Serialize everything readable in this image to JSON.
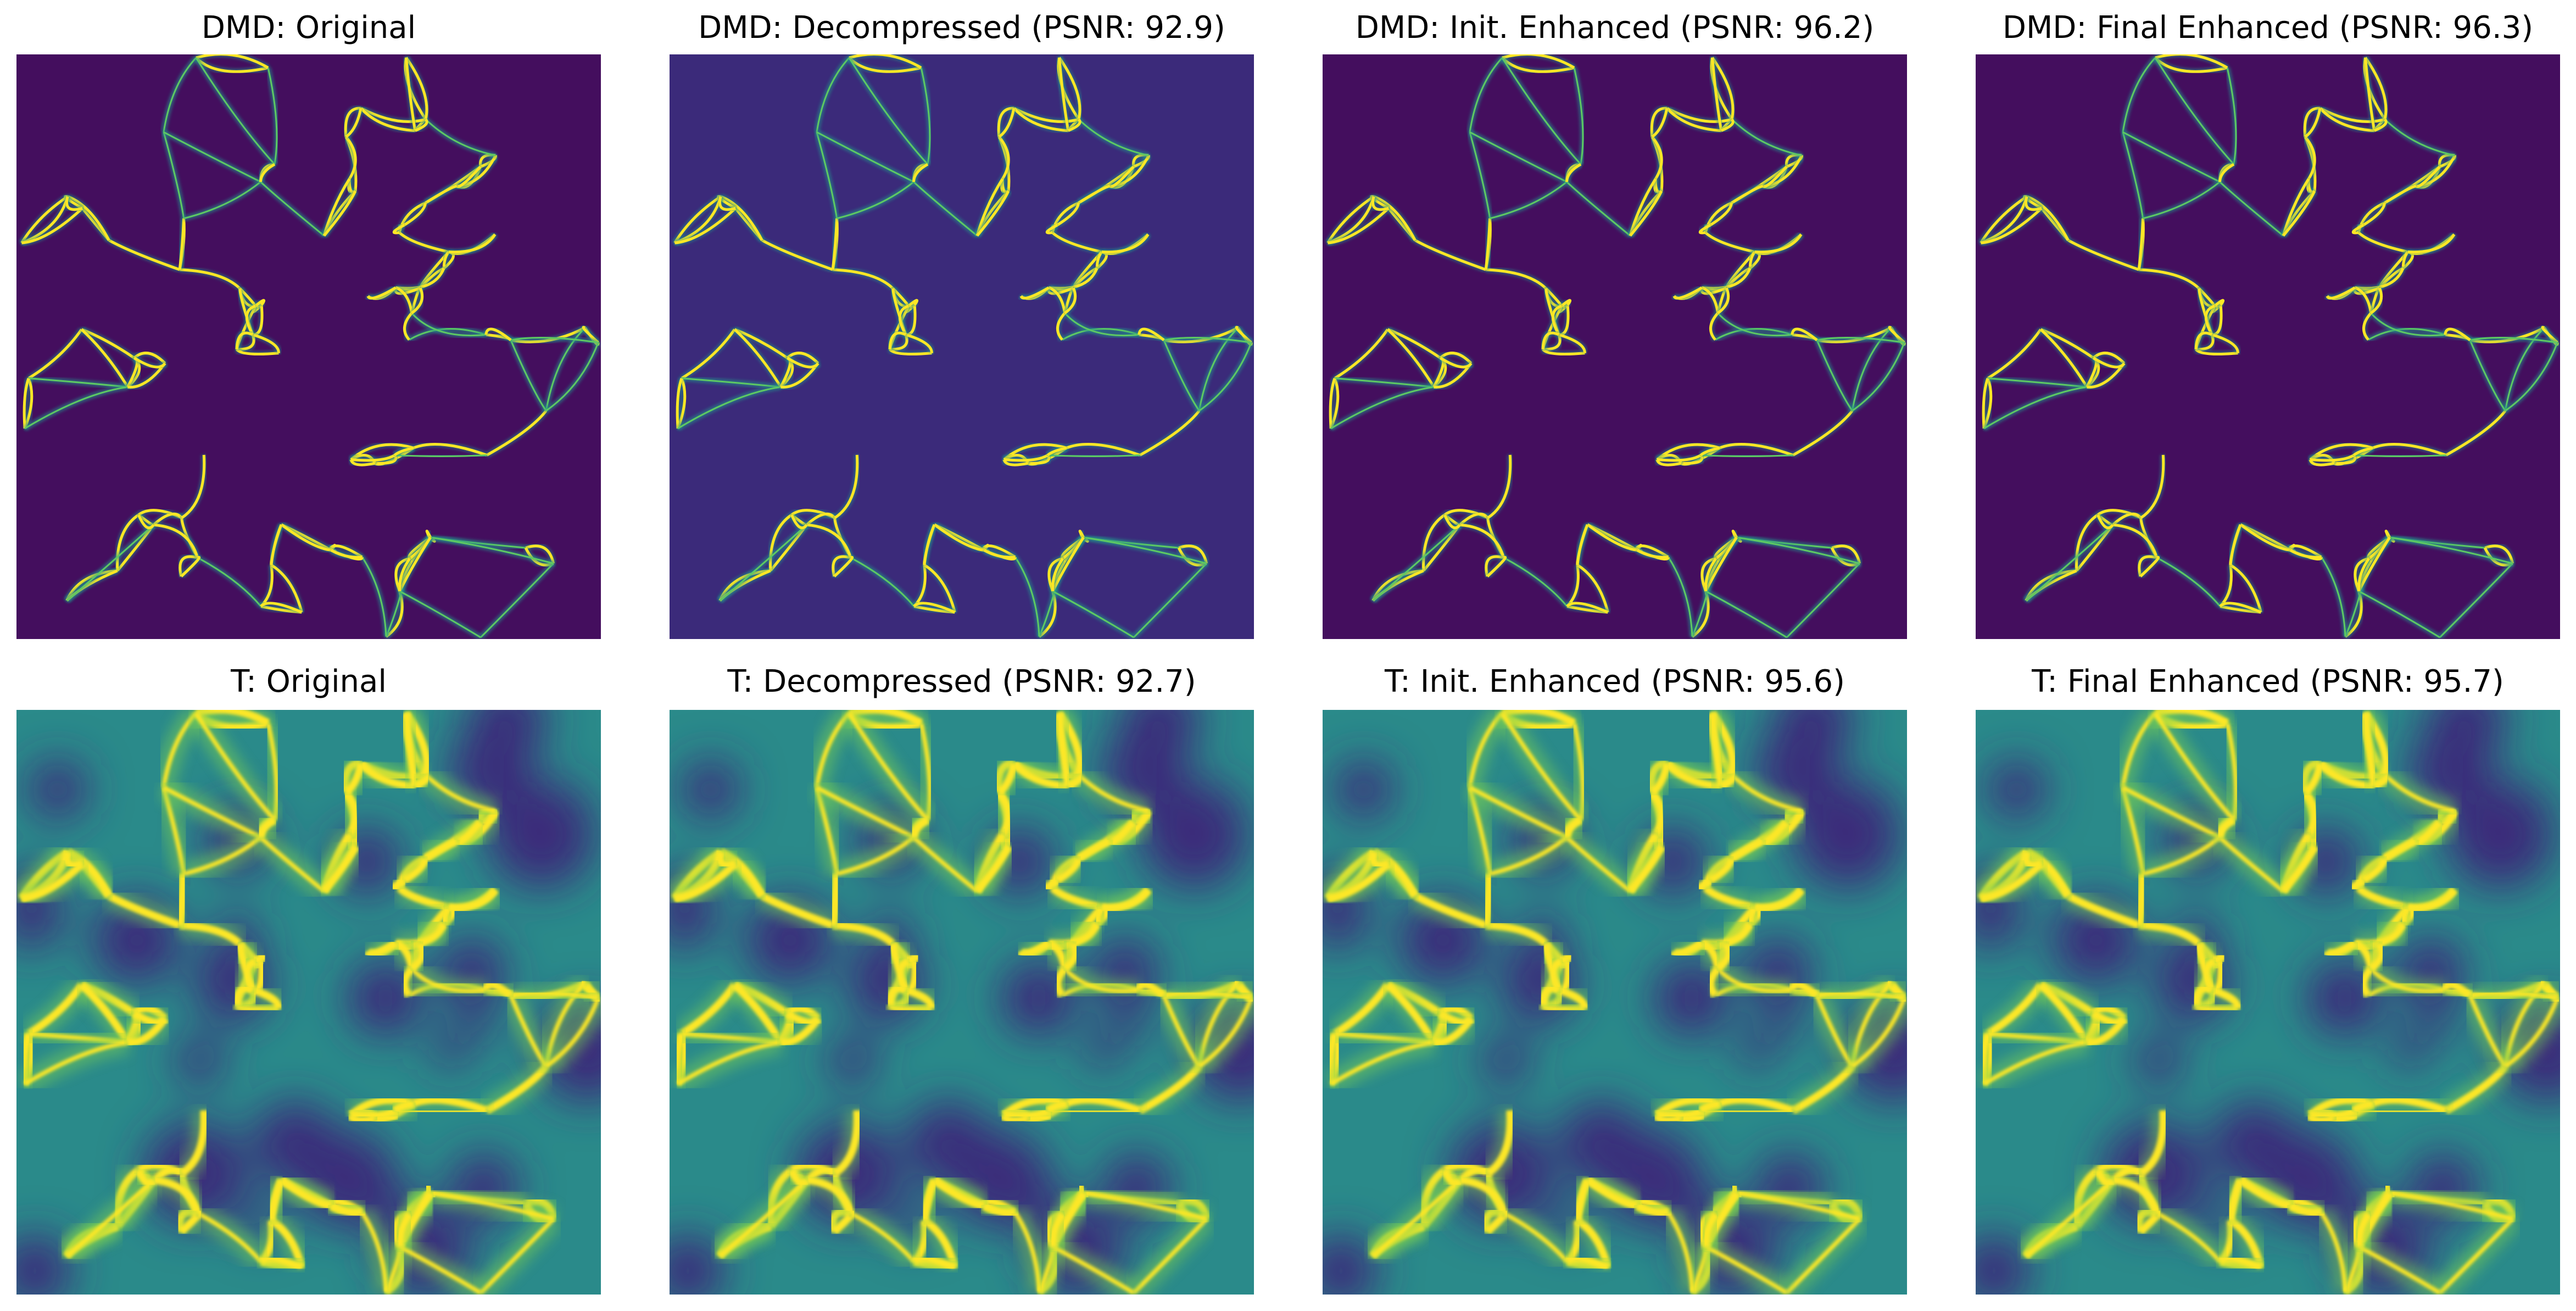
{
  "panels": [
    {
      "title": "DMD: Original"
    },
    {
      "title": "DMD: Decompressed (PSNR: 92.9)"
    },
    {
      "title": "DMD: Init. Enhanced (PSNR: 96.2)"
    },
    {
      "title": "DMD: Final Enhanced (PSNR: 96.3)"
    },
    {
      "title": "T: Original"
    },
    {
      "title": "T: Decompressed (PSNR: 92.7)"
    },
    {
      "title": "T: Init. Enhanced (PSNR: 95.6)"
    },
    {
      "title": "T: Final Enhanced (PSNR: 95.7)"
    }
  ]
}
